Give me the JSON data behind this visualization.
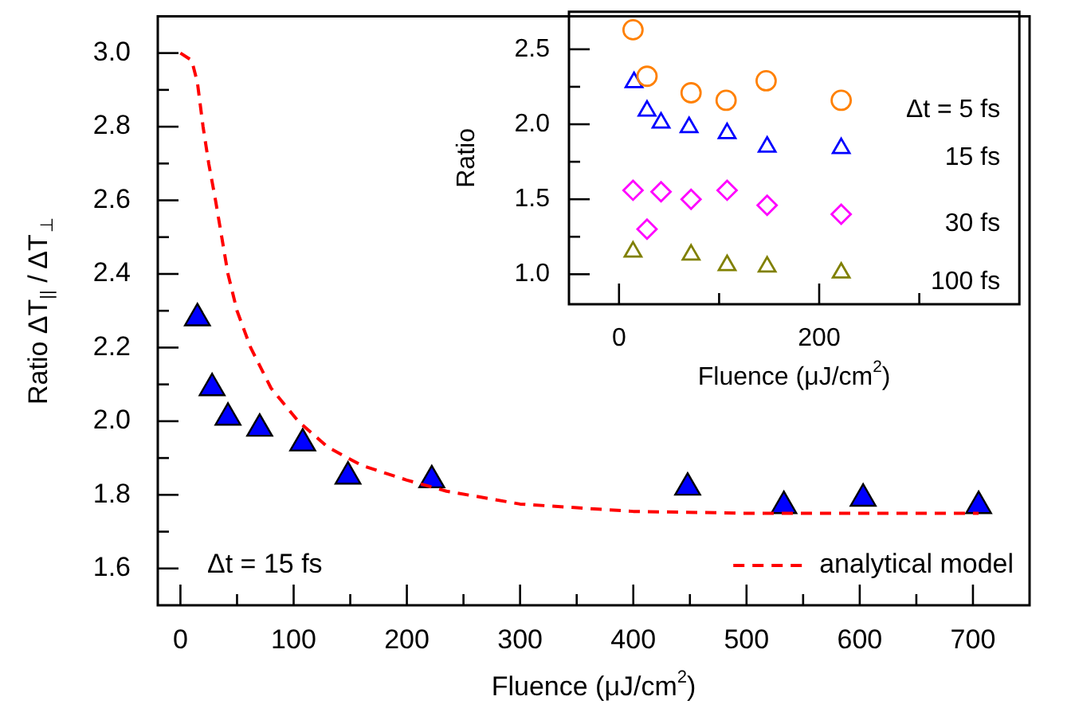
{
  "chart_data": [
    {
      "type": "scatter",
      "xlabel": "Fluence (μJ/cm$^{2}$)",
      "ylabel": "Ratio ΔT$_{||}$ / ΔT$_{⊥}$",
      "annotations": [
        "Δt = 15 fs"
      ],
      "legend": "bottom right",
      "xlim": [
        -20,
        750
      ],
      "ylim": [
        1.5,
        3.1
      ],
      "xticks": [
        0,
        {
          "value": 50,
          "label": null
        },
        100,
        {
          "value": 150,
          "label": null
        },
        200,
        {
          "value": 250,
          "label": null
        },
        300,
        {
          "value": 350,
          "label": null
        },
        400,
        {
          "value": 450,
          "label": null
        },
        500,
        {
          "value": 550,
          "label": null
        },
        600,
        {
          "value": 650,
          "label": null
        },
        700
      ],
      "yticks": [
        {
          "value": 1.6,
          "label": "1.6"
        },
        {
          "value": 1.7,
          "label": null
        },
        {
          "value": 1.8,
          "label": "1.8"
        },
        {
          "value": 1.9,
          "label": null
        },
        {
          "value": 2.0,
          "label": "2.0"
        },
        {
          "value": 2.1,
          "label": null
        },
        {
          "value": 2.2,
          "label": "2.2"
        },
        {
          "value": 2.3,
          "label": null
        },
        {
          "value": 2.4,
          "label": "2.4"
        },
        {
          "value": 2.5,
          "label": null
        },
        {
          "value": 2.6,
          "label": "2.6"
        },
        {
          "value": 2.7,
          "label": null
        },
        {
          "value": 2.8,
          "label": "2.8"
        },
        {
          "value": 2.9,
          "label": null
        },
        {
          "value": 3.0,
          "label": "3.0"
        }
      ],
      "series": [
        {
          "type": "line",
          "name": "analytical model",
          "color": "#ff0000",
          "line_style": "dashed",
          "marker": "none",
          "x": [
            0,
            10,
            15,
            20,
            25,
            31,
            42,
            50,
            62,
            80,
            104,
            130,
            160,
            200,
            235,
            300,
            400,
            500,
            705
          ],
          "values": [
            3.0,
            2.98,
            2.92,
            2.8,
            2.7,
            2.6,
            2.4,
            2.3,
            2.2,
            2.09,
            2.0,
            1.93,
            1.88,
            1.84,
            1.81,
            1.775,
            1.755,
            1.75,
            1.75
          ]
        },
        {
          "type": "scatter",
          "color": "#0000ff",
          "marker": "triangle",
          "x": [
            15,
            28,
            42,
            70,
            108,
            148,
            222,
            448,
            533,
            603,
            705
          ],
          "values": [
            2.28,
            2.09,
            2.01,
            1.98,
            1.94,
            1.85,
            1.84,
            1.82,
            1.77,
            1.79,
            1.77
          ]
        }
      ]
    },
    {
      "type": "scatter",
      "xlabel": "Fluence (μJ/cm$^{2}$)",
      "ylabel": "Ratio",
      "legend": false,
      "xlim": [
        -50,
        400
      ],
      "ylim": [
        0.8,
        2.75
      ],
      "xticks": [
        0,
        {
          "value": 100,
          "label": null
        },
        200,
        {
          "value": 300,
          "label": null
        }
      ],
      "yticks": [
        {
          "value": 1.0,
          "label": "1.0"
        },
        {
          "value": 1.25,
          "label": null
        },
        {
          "value": 1.5,
          "label": "1.5"
        },
        {
          "value": 1.75,
          "label": null
        },
        {
          "value": 2.0,
          "label": "2.0"
        },
        {
          "value": 2.25,
          "label": null
        },
        {
          "value": 2.5,
          "label": "2.5"
        }
      ],
      "series": [
        {
          "name": "Δt = 5 fs",
          "color": "#ff8000",
          "marker": "circle",
          "x": [
            14,
            28,
            72,
            107,
            147,
            222
          ],
          "values": [
            2.63,
            2.32,
            2.21,
            2.16,
            2.29,
            2.16
          ]
        },
        {
          "name": "15 fs",
          "color": "#0000ff",
          "marker": "triangle",
          "x": [
            15,
            28,
            42,
            70,
            108,
            148,
            222
          ],
          "values": [
            2.28,
            2.09,
            2.01,
            1.98,
            1.94,
            1.85,
            1.84
          ]
        },
        {
          "name": "30 fs",
          "color": "#ff00ff",
          "marker": "diamond",
          "x": [
            14,
            28,
            42,
            72,
            108,
            148,
            222
          ],
          "values": [
            1.56,
            1.3,
            1.55,
            1.5,
            1.56,
            1.46,
            1.4
          ]
        },
        {
          "name": "100 fs",
          "color": "#808000",
          "marker": "triangle",
          "x": [
            14,
            72,
            108,
            148,
            222
          ],
          "values": [
            1.15,
            1.13,
            1.06,
            1.05,
            1.01
          ]
        }
      ]
    }
  ]
}
